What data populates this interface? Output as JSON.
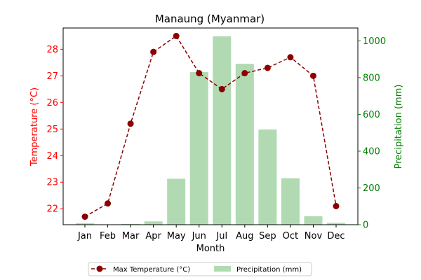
{
  "chart_data": {
    "type": "bar+line",
    "title": "Manaung (Myanmar)",
    "xlabel": "Month",
    "categories": [
      "Jan",
      "Feb",
      "Mar",
      "Apr",
      "May",
      "Jun",
      "Jul",
      "Aug",
      "Sep",
      "Oct",
      "Nov",
      "Dec"
    ],
    "left_axis": {
      "label": "Temperature (°C)",
      "color": "#ff0000",
      "ylim": [
        21.4,
        28.8
      ],
      "ticks": [
        22,
        23,
        24,
        25,
        26,
        27,
        28
      ]
    },
    "right_axis": {
      "label": "Precipitation (mm)",
      "color": "#008000",
      "ylim": [
        0,
        1070
      ],
      "ticks": [
        0,
        200,
        400,
        600,
        800,
        1000
      ]
    },
    "series": [
      {
        "name": "Max Temperature (°C)",
        "kind": "line",
        "axis": "left",
        "color": "#8b0000",
        "style": "dashed",
        "marker": "circle",
        "values": [
          21.7,
          22.2,
          25.2,
          27.9,
          28.5,
          27.1,
          26.5,
          27.1,
          27.3,
          27.7,
          27.0,
          22.1
        ]
      },
      {
        "name": "Precipitation (mm)",
        "kind": "bar",
        "axis": "right",
        "color": "#b2dab2",
        "values": [
          8,
          2,
          4,
          18,
          250,
          830,
          1025,
          875,
          518,
          253,
          46,
          10
        ]
      }
    ],
    "legend_position": "bottom-center",
    "grid": false
  }
}
